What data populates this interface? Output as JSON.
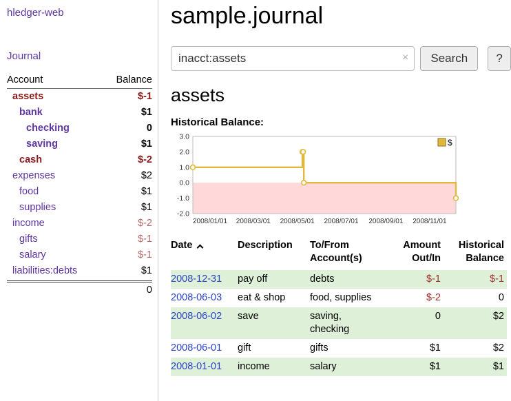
{
  "sidebar": {
    "app_title": "hledger-web",
    "journal_link": "Journal",
    "accounts": {
      "col_account": "Account",
      "col_balance": "Balance",
      "rows": [
        {
          "name": "assets",
          "balance": "$-1",
          "indent": 0,
          "bold": true,
          "name_neg": true,
          "bal_neg": "strong"
        },
        {
          "name": "bank",
          "balance": "$1",
          "indent": 1,
          "bold": true,
          "name_neg": false,
          "bal_neg": "none"
        },
        {
          "name": "checking",
          "balance": "0",
          "indent": 2,
          "bold": true,
          "name_neg": false,
          "bal_neg": "none"
        },
        {
          "name": "saving",
          "balance": "$1",
          "indent": 2,
          "bold": true,
          "name_neg": false,
          "bal_neg": "none"
        },
        {
          "name": "cash",
          "balance": "$-2",
          "indent": 1,
          "bold": true,
          "name_neg": true,
          "bal_neg": "strong"
        },
        {
          "name": "expenses",
          "balance": "$2",
          "indent": 0,
          "bold": false,
          "name_neg": false,
          "bal_neg": "none"
        },
        {
          "name": "food",
          "balance": "$1",
          "indent": 1,
          "bold": false,
          "name_neg": false,
          "bal_neg": "none"
        },
        {
          "name": "supplies",
          "balance": "$1",
          "indent": 1,
          "bold": false,
          "name_neg": false,
          "bal_neg": "none"
        },
        {
          "name": "income",
          "balance": "$-2",
          "indent": 0,
          "bold": false,
          "name_neg": false,
          "bal_neg": "soft"
        },
        {
          "name": "gifts",
          "balance": "$-1",
          "indent": 1,
          "bold": false,
          "name_neg": false,
          "bal_neg": "soft"
        },
        {
          "name": "salary",
          "balance": "$-1",
          "indent": 1,
          "bold": false,
          "name_neg": false,
          "bal_neg": "soft"
        },
        {
          "name": "liabilities:debts",
          "balance": "$1",
          "indent": 0,
          "bold": false,
          "name_neg": false,
          "bal_neg": "none"
        }
      ],
      "total": "0"
    }
  },
  "main": {
    "title": "sample.journal",
    "search": {
      "value": "inacct:assets",
      "clear_icon": "×",
      "search_button": "Search",
      "help_button": "?"
    },
    "account_heading": "assets",
    "chart_title": "Historical Balance:"
  },
  "chart_data": {
    "type": "line",
    "line_shape": "step-after",
    "title": "Historical Balance",
    "xlim": [
      "2008-01-01",
      "2008-12-31"
    ],
    "ylim": [
      -2.0,
      3.0
    ],
    "yticks": [
      "3.0",
      "2.0",
      "1.0",
      "0.0",
      "-1.0",
      "-2.0"
    ],
    "xticks": [
      {
        "label": "2008/01/01",
        "x": "2008-01-01"
      },
      {
        "label": "2008/03/01",
        "x": "2008-03-01"
      },
      {
        "label": "2008/05/01",
        "x": "2008-05-01"
      },
      {
        "label": "2008/07/01",
        "x": "2008-07-01"
      },
      {
        "label": "2008/09/01",
        "x": "2008-09-01"
      },
      {
        "label": "2008/11/01",
        "x": "2008-11-01"
      }
    ],
    "legend": {
      "label": "$",
      "position": "top-right"
    },
    "series": [
      {
        "name": "$",
        "points": [
          {
            "x": "2008-01-01",
            "y": 1
          },
          {
            "x": "2008-06-01",
            "y": 2
          },
          {
            "x": "2008-06-02",
            "y": 2
          },
          {
            "x": "2008-06-03",
            "y": 0
          },
          {
            "x": "2008-12-31",
            "y": -1
          }
        ]
      }
    ],
    "colors": {
      "line": "#e0b83e",
      "marker_fill": "#fffdf2",
      "negative_region": "#ffd9d9",
      "plot_border": "#bbbbbb",
      "tick_text": "#333333"
    }
  },
  "register": {
    "headers": {
      "date": "Date",
      "description": "Description",
      "account": "To/From\nAccount(s)",
      "amount": "Amount\nOut/In",
      "balance": "Historical\nBalance"
    },
    "rows": [
      {
        "date": "2008-12-31",
        "description": "pay off",
        "accounts": "debts",
        "amount": "$-1",
        "balance": "$-1",
        "amount_neg": true,
        "balance_neg": true,
        "shaded": true
      },
      {
        "date": "2008-06-03",
        "description": "eat & shop",
        "accounts": "food, supplies",
        "amount": "$-2",
        "balance": "0",
        "amount_neg": true,
        "balance_neg": false,
        "shaded": false
      },
      {
        "date": "2008-06-02",
        "description": "save",
        "accounts": "saving, checking",
        "amount": "0",
        "balance": "$2",
        "amount_neg": false,
        "balance_neg": false,
        "shaded": true
      },
      {
        "date": "2008-06-01",
        "description": "gift",
        "accounts": "gifts",
        "amount": "$1",
        "balance": "$2",
        "amount_neg": false,
        "balance_neg": false,
        "shaded": false
      },
      {
        "date": "2008-01-01",
        "description": "income",
        "accounts": "salary",
        "amount": "$1",
        "balance": "$1",
        "amount_neg": false,
        "balance_neg": false,
        "shaded": true
      }
    ]
  }
}
